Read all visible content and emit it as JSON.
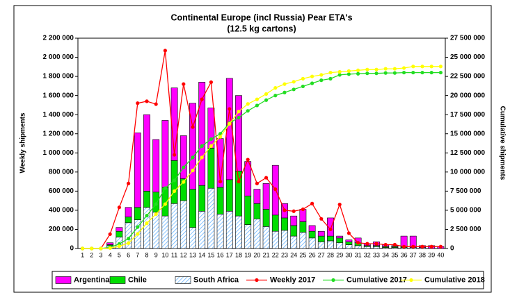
{
  "chart_data": {
    "type": "bar",
    "title": "Continental Europe (incl Russia) Pear ETA's",
    "subtitle": "(12.5 kg cartons)",
    "y_label": "Weekly shipments",
    "y2_label": "Cumulative shipments",
    "categories": [
      "1",
      "2",
      "3",
      "4",
      "5",
      "6",
      "7",
      "8",
      "9",
      "10",
      "11",
      "12",
      "13",
      "14",
      "15",
      "16",
      "17",
      "18",
      "19",
      "20",
      "21",
      "22",
      "23",
      "24",
      "25",
      "26",
      "27",
      "28",
      "29",
      "30",
      "31",
      "32",
      "33",
      "34",
      "35",
      "36",
      "37",
      "38",
      "39",
      "40"
    ],
    "ylim": [
      0,
      2200000
    ],
    "yticks": [
      0,
      {
        "value": 200000,
        "label": "200 000"
      },
      {
        "value": 400000,
        "label": "400 000"
      },
      {
        "value": 600000,
        "label": "600 000"
      },
      {
        "value": 800000,
        "label": "800 000"
      },
      {
        "value": 1000000,
        "label": "1 000 000"
      },
      {
        "value": 1200000,
        "label": "1 200 000"
      },
      {
        "value": 1400000,
        "label": "1 400 000"
      },
      {
        "value": 1600000,
        "label": "1 600 000"
      },
      {
        "value": 1800000,
        "label": "1 800 000"
      },
      {
        "value": 2000000,
        "label": "2 000 000"
      },
      {
        "value": 2200000,
        "label": "2 200 000"
      }
    ],
    "y2lim": [
      0,
      27500000
    ],
    "y2ticks": [
      0,
      {
        "value": 2500000,
        "label": "2 500 000"
      },
      {
        "value": 5000000,
        "label": "5 000 000"
      },
      {
        "value": 7500000,
        "label": "7 500 000"
      },
      {
        "value": 10000000,
        "label": "10 000 000"
      },
      {
        "value": 12500000,
        "label": "12 500 000"
      },
      {
        "value": 15000000,
        "label": "15 000 000"
      },
      {
        "value": 17500000,
        "label": "17 500 000"
      },
      {
        "value": 20000000,
        "label": "20 000 000"
      },
      {
        "value": 22500000,
        "label": "22 500 000"
      },
      {
        "value": 25000000,
        "label": "25 000 000"
      },
      {
        "value": 27500000,
        "label": "27 500 000"
      }
    ],
    "stack_order": [
      "South Africa",
      "Chile",
      "Argentina"
    ],
    "series": [
      {
        "name": "Argentina",
        "type": "bar",
        "color": "#ff00ff",
        "values": [
          0,
          0,
          0,
          20000,
          40000,
          100000,
          780000,
          800000,
          550000,
          700000,
          760000,
          450000,
          900000,
          1080000,
          420000,
          510000,
          1060000,
          790000,
          360000,
          150000,
          270000,
          520000,
          150000,
          100000,
          130000,
          60000,
          50000,
          190000,
          20000,
          20000,
          50000,
          20000,
          40000,
          20000,
          10000,
          110000,
          120000,
          20000,
          30000,
          20000
        ]
      },
      {
        "name": "Chile",
        "type": "bar",
        "color": "#00dd00",
        "values": [
          0,
          0,
          0,
          10000,
          60000,
          60000,
          130000,
          170000,
          210000,
          300000,
          450000,
          230000,
          400000,
          270000,
          420000,
          280000,
          330000,
          470000,
          300000,
          160000,
          180000,
          170000,
          130000,
          110000,
          110000,
          70000,
          60000,
          50000,
          50000,
          30000,
          30000,
          10000,
          10000,
          10000,
          10000,
          10000,
          0,
          0,
          0,
          0
        ]
      },
      {
        "name": "South Africa",
        "type": "bar",
        "color": "#66b3ff",
        "pattern": "hatch",
        "values": [
          0,
          0,
          0,
          30000,
          120000,
          270000,
          300000,
          430000,
          380000,
          340000,
          470000,
          500000,
          220000,
          390000,
          630000,
          360000,
          390000,
          340000,
          250000,
          310000,
          230000,
          180000,
          190000,
          130000,
          170000,
          110000,
          70000,
          80000,
          60000,
          40000,
          30000,
          20000,
          20000,
          10000,
          10000,
          10000,
          10000,
          10000,
          0,
          0
        ]
      },
      {
        "name": "Weekly 2017",
        "type": "line",
        "color": "#ff0000",
        "values": [
          0,
          0,
          0,
          150000,
          430000,
          680000,
          1520000,
          1540000,
          1510000,
          2070000,
          980000,
          1720000,
          1270000,
          1560000,
          1740000,
          700000,
          1460000,
          700000,
          930000,
          680000,
          740000,
          620000,
          400000,
          390000,
          410000,
          470000,
          310000,
          200000,
          460000,
          160000,
          60000,
          50000,
          50000,
          40000,
          40000,
          20000,
          20000,
          20000,
          20000,
          20000
        ]
      },
      {
        "name": "Cumulative 2017",
        "type": "line",
        "axis": "y2",
        "color": "#22dd22",
        "values": [
          0,
          0,
          0,
          150000,
          600000,
          1300000,
          2800000,
          4300000,
          5800000,
          7900000,
          8900000,
          10600000,
          11900000,
          13400000,
          14300000,
          15000000,
          16400000,
          17100000,
          18000000,
          18700000,
          19400000,
          20000000,
          20400000,
          20800000,
          21200000,
          21600000,
          22000000,
          22200000,
          22700000,
          22800000,
          22850000,
          22900000,
          22900000,
          22950000,
          22950000,
          23000000,
          23000000,
          23000000,
          23000000,
          23000000
        ]
      },
      {
        "name": "Cumulative 2018",
        "type": "line",
        "axis": "y2",
        "color": "#ffff00",
        "values": [
          0,
          0,
          0,
          50000,
          300000,
          700000,
          1900000,
          3300000,
          4500000,
          5800000,
          7500000,
          8700000,
          10200000,
          11900000,
          13400000,
          14600000,
          16300000,
          17900000,
          18900000,
          19500000,
          20200000,
          21000000,
          21500000,
          21800000,
          22200000,
          22500000,
          22700000,
          23000000,
          23100000,
          23200000,
          23300000,
          23400000,
          23400000,
          23500000,
          23500000,
          23600000,
          23800000,
          23800000,
          23800000,
          23800000
        ]
      }
    ]
  }
}
